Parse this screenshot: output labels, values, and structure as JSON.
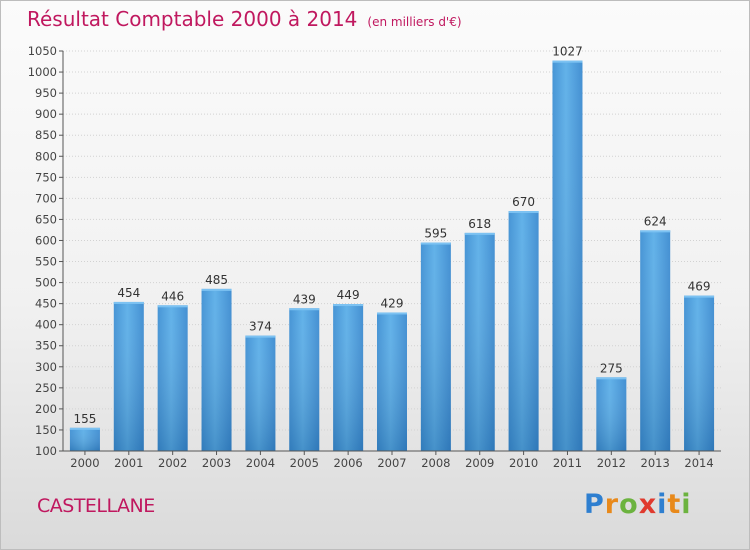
{
  "chart_data": {
    "type": "bar",
    "title": "Résultat Comptable 2000 à 2014",
    "subtitle": "(en milliers d'€)",
    "categories": [
      "2000",
      "2001",
      "2002",
      "2003",
      "2004",
      "2005",
      "2006",
      "2007",
      "2008",
      "2009",
      "2010",
      "2011",
      "2012",
      "2013",
      "2014"
    ],
    "values": [
      155,
      454,
      446,
      485,
      374,
      439,
      449,
      429,
      595,
      618,
      670,
      1027,
      275,
      624,
      469
    ],
    "ylim": [
      100,
      1050
    ],
    "yticks": [
      100,
      150,
      200,
      250,
      300,
      350,
      400,
      450,
      500,
      550,
      600,
      650,
      700,
      750,
      800,
      850,
      900,
      950,
      1000,
      1050
    ],
    "grid": true,
    "bar_color": "#4a9fe0",
    "title_color": "#c0185f"
  },
  "footer": {
    "location": "CASTELLANE",
    "logo_letters": [
      {
        "ch": "P",
        "color": "#2e7fd0"
      },
      {
        "ch": "r",
        "color": "#e8891a"
      },
      {
        "ch": "o",
        "color": "#6cb33f"
      },
      {
        "ch": "x",
        "color": "#e03a2e"
      },
      {
        "ch": "i",
        "color": "#2e7fd0"
      },
      {
        "ch": "t",
        "color": "#e8891a"
      },
      {
        "ch": "i",
        "color": "#6cb33f"
      }
    ]
  }
}
